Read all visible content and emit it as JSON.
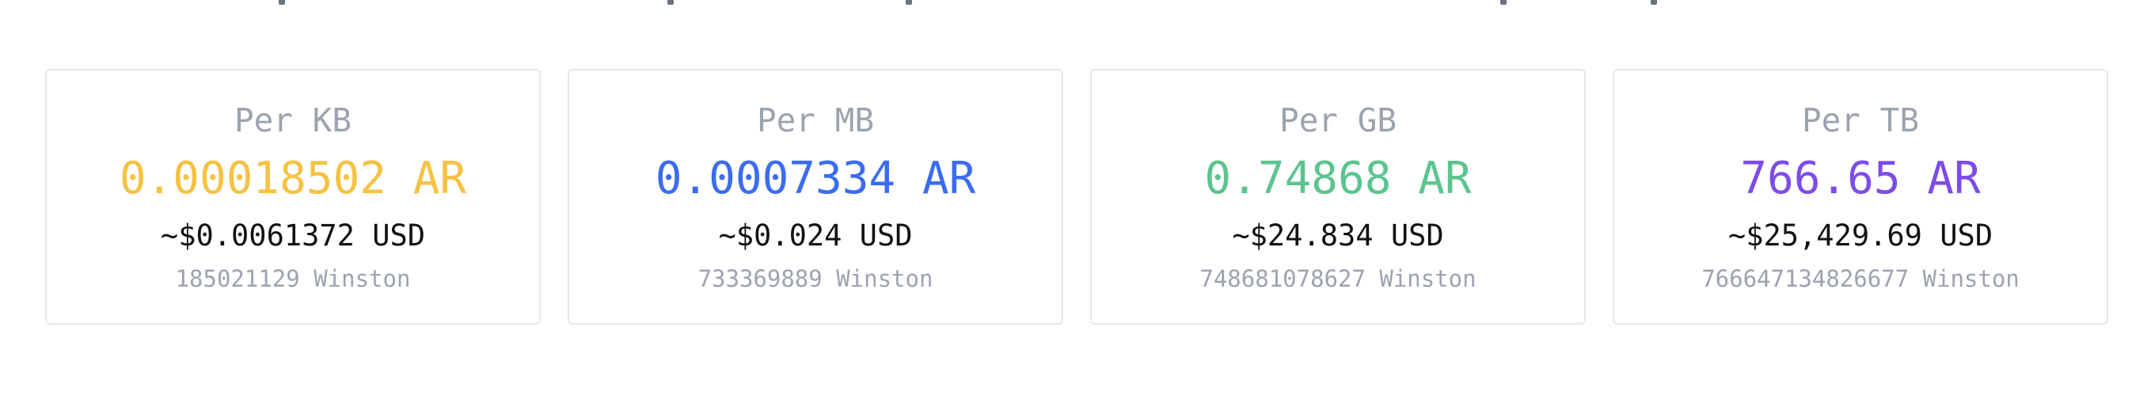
{
  "colors": {
    "label_gray": "#9ca3af",
    "usd_black": "#111111",
    "card_border": "#e5e7eb",
    "kb_accent": "#f5c242",
    "mb_accent": "#3b6cf0",
    "gb_accent": "#5cc48f",
    "tb_accent": "#7d4ce8"
  },
  "cards": [
    {
      "label": "Per KB",
      "ar_value": "0.00018502 AR",
      "usd_value": "~$0.0061372 USD",
      "winston": "185021129 Winston",
      "accent": "#f5c242"
    },
    {
      "label": "Per MB",
      "ar_value": "0.0007334 AR",
      "usd_value": "~$0.024 USD",
      "winston": "733369889 Winston",
      "accent": "#3b6cf0"
    },
    {
      "label": "Per GB",
      "ar_value": "0.74868 AR",
      "usd_value": "~$24.834 USD",
      "winston": "748681078627 Winston",
      "accent": "#5cc48f"
    },
    {
      "label": "Per TB",
      "ar_value": "766.65 AR",
      "usd_value": "~$25,429.69 USD",
      "winston": "766647134826677 Winston",
      "accent": "#7d4ce8"
    }
  ]
}
